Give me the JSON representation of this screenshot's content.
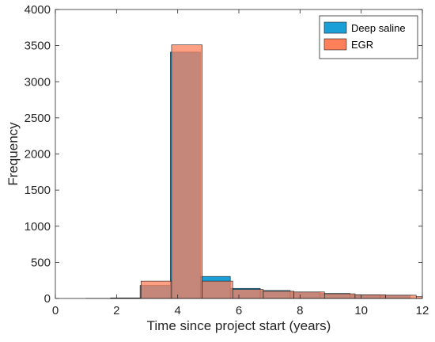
{
  "chart_data": {
    "type": "bar",
    "xlabel": "Time since project start (years)",
    "ylabel": "Frequency",
    "xlim": [
      0,
      12
    ],
    "ylim": [
      0,
      4000
    ],
    "xticks": [
      0,
      2,
      4,
      6,
      8,
      10,
      12
    ],
    "yticks": [
      0,
      500,
      1000,
      1500,
      2000,
      2500,
      3000,
      3500,
      4000
    ],
    "grid": false,
    "legend_position": "top-right",
    "series": [
      {
        "name": "Deep saline",
        "color": "#1a9fd6",
        "edges": [
          1.0,
          1.81,
          2.77,
          3.76,
          4.74,
          5.72,
          6.7,
          7.68,
          8.66,
          9.64,
          10.62,
          11.6
        ],
        "values": [
          2,
          8,
          180,
          3410,
          305,
          140,
          110,
          90,
          70,
          50,
          45
        ]
      },
      {
        "name": "EGR",
        "color": "#ff7f5a",
        "edges": [
          1.8,
          2.8,
          3.8,
          4.8,
          5.8,
          6.8,
          7.8,
          8.8,
          9.8,
          10.8,
          11.8,
          12.0
        ],
        "values": [
          5,
          240,
          3510,
          240,
          125,
          100,
          90,
          65,
          50,
          45,
          25
        ]
      }
    ]
  }
}
